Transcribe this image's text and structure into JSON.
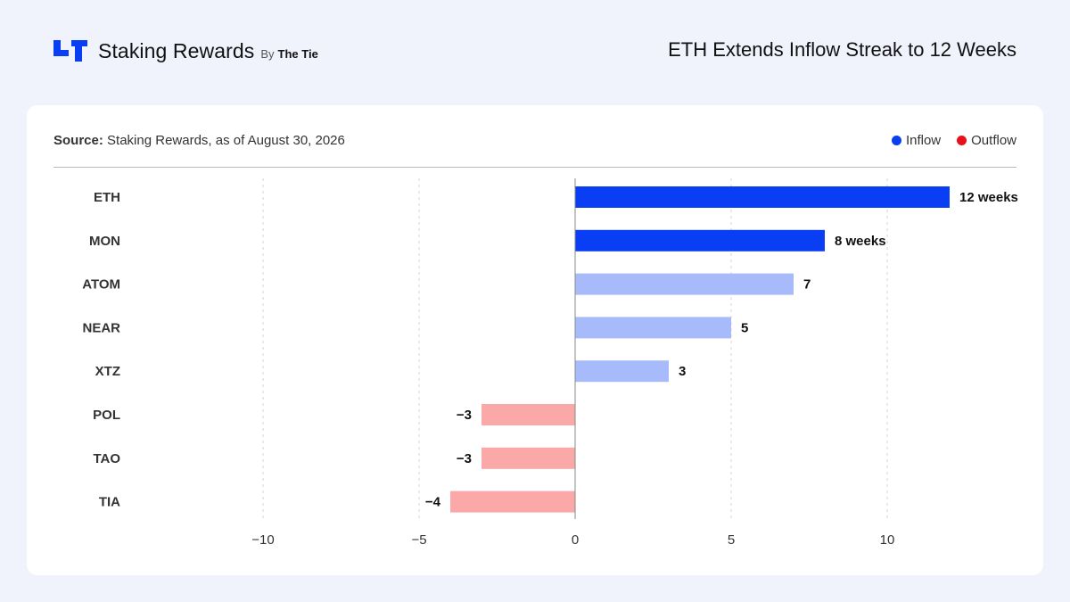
{
  "header": {
    "brand_name": "Staking Rewards",
    "brand_by": "By",
    "brand_partner": "The Tie",
    "title": "ETH Extends Inflow Streak to 12 Weeks"
  },
  "source": {
    "label": "Source:",
    "text": "Staking Rewards, as of August 30, 2026"
  },
  "legend": [
    {
      "label": "Inflow",
      "color": "#0a3ef5"
    },
    {
      "label": "Outflow",
      "color": "#e8101a"
    }
  ],
  "colors": {
    "inflow_strong": "#0a3ef5",
    "inflow_light": "#a7baf9",
    "outflow_light": "#fba8a8",
    "brand": "#0a3ef5"
  },
  "chart_data": {
    "type": "bar",
    "orientation": "horizontal",
    "categories": [
      "ETH",
      "MON",
      "ATOM",
      "NEAR",
      "XTZ",
      "POL",
      "TAO",
      "TIA"
    ],
    "values": [
      12,
      8,
      7,
      5,
      3,
      -3,
      -3,
      -4
    ],
    "data_labels": [
      "12 weeks",
      "8 weeks",
      "7",
      "5",
      "3",
      "−3",
      "−3",
      "−4"
    ],
    "bar_styles": [
      "strong",
      "strong",
      "light",
      "light",
      "light",
      "outflow",
      "outflow",
      "outflow"
    ],
    "xlim": [
      -10,
      12
    ],
    "xticks": [
      -10,
      -5,
      0,
      5,
      10
    ],
    "xtick_labels": [
      "−10",
      "−5",
      "0",
      "5",
      "10"
    ],
    "grid": "vertical dashed",
    "legend_position": "top-right"
  }
}
